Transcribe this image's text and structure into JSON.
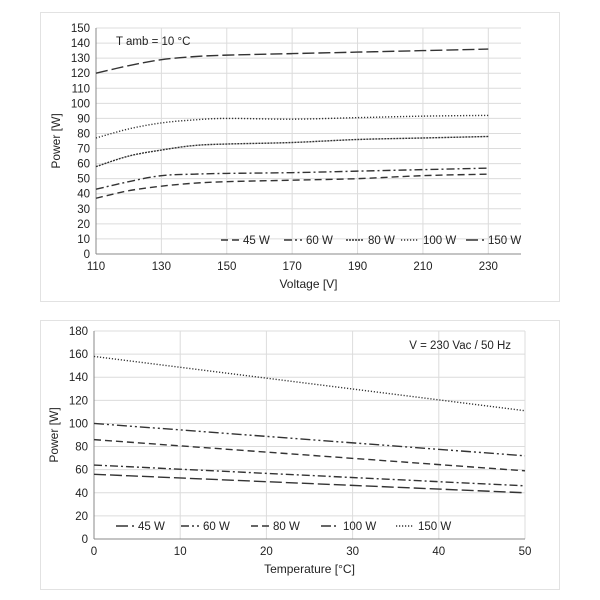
{
  "chart_data": [
    {
      "type": "line",
      "annotation": "T amb = 10 °C",
      "xlabel": "Voltage  [V]",
      "ylabel": "Power [W]",
      "xlim": [
        110,
        240
      ],
      "ylim": [
        0,
        150
      ],
      "xticks": [
        110,
        130,
        150,
        170,
        190,
        210,
        230
      ],
      "yticks": [
        0,
        10,
        20,
        30,
        40,
        50,
        60,
        70,
        80,
        90,
        100,
        110,
        120,
        130,
        140,
        150
      ],
      "grid": true,
      "legend_position": "bottom-right",
      "series": [
        {
          "name": "45 W",
          "dash": "dash",
          "x": [
            110,
            120,
            130,
            140,
            150,
            170,
            190,
            210,
            230
          ],
          "y": [
            37,
            42,
            45,
            47,
            48,
            49,
            50,
            52,
            53
          ]
        },
        {
          "name": "60 W",
          "dash": "dashdot",
          "x": [
            110,
            120,
            130,
            140,
            150,
            170,
            190,
            210,
            230
          ],
          "y": [
            43,
            48,
            52,
            53,
            53.5,
            54,
            55,
            56,
            57
          ]
        },
        {
          "name": "80 W",
          "dash": "dense",
          "x": [
            110,
            120,
            130,
            140,
            150,
            170,
            190,
            210,
            230
          ],
          "y": [
            58,
            65,
            69,
            72,
            73,
            74,
            76,
            77,
            78
          ]
        },
        {
          "name": "100 W",
          "dash": "dot",
          "x": [
            110,
            120,
            130,
            140,
            150,
            170,
            190,
            210,
            230
          ],
          "y": [
            77,
            83,
            87,
            89,
            90,
            89.5,
            90.5,
            91.5,
            92
          ]
        },
        {
          "name": "150 W",
          "dash": "longdash",
          "x": [
            110,
            120,
            130,
            140,
            150,
            170,
            190,
            210,
            230
          ],
          "y": [
            120,
            125,
            129,
            131,
            132,
            133,
            134,
            135,
            136
          ]
        }
      ]
    },
    {
      "type": "line",
      "annotation": "V = 230 Vac  / 50 Hz",
      "xlabel": "Temperature [°C]",
      "ylabel": "Power [W]",
      "xlim": [
        0,
        50
      ],
      "ylim": [
        0,
        180
      ],
      "xticks": [
        0,
        10,
        20,
        30,
        40,
        50
      ],
      "yticks": [
        0,
        20,
        40,
        60,
        80,
        100,
        120,
        140,
        160,
        180
      ],
      "grid": true,
      "legend_position": "bottom",
      "series": [
        {
          "name": "45 W",
          "dash": "longdash",
          "x": [
            0,
            50
          ],
          "y": [
            56,
            40
          ]
        },
        {
          "name": "60 W",
          "dash": "dashdot",
          "x": [
            0,
            50
          ],
          "y": [
            64,
            46
          ]
        },
        {
          "name": "80 W",
          "dash": "dash",
          "x": [
            0,
            50
          ],
          "y": [
            86,
            59
          ]
        },
        {
          "name": "100 W",
          "dash": "dashdotdot",
          "x": [
            0,
            50
          ],
          "y": [
            100,
            72
          ]
        },
        {
          "name": "150 W",
          "dash": "dot",
          "x": [
            0,
            50
          ],
          "y": [
            158,
            111
          ]
        }
      ]
    }
  ]
}
